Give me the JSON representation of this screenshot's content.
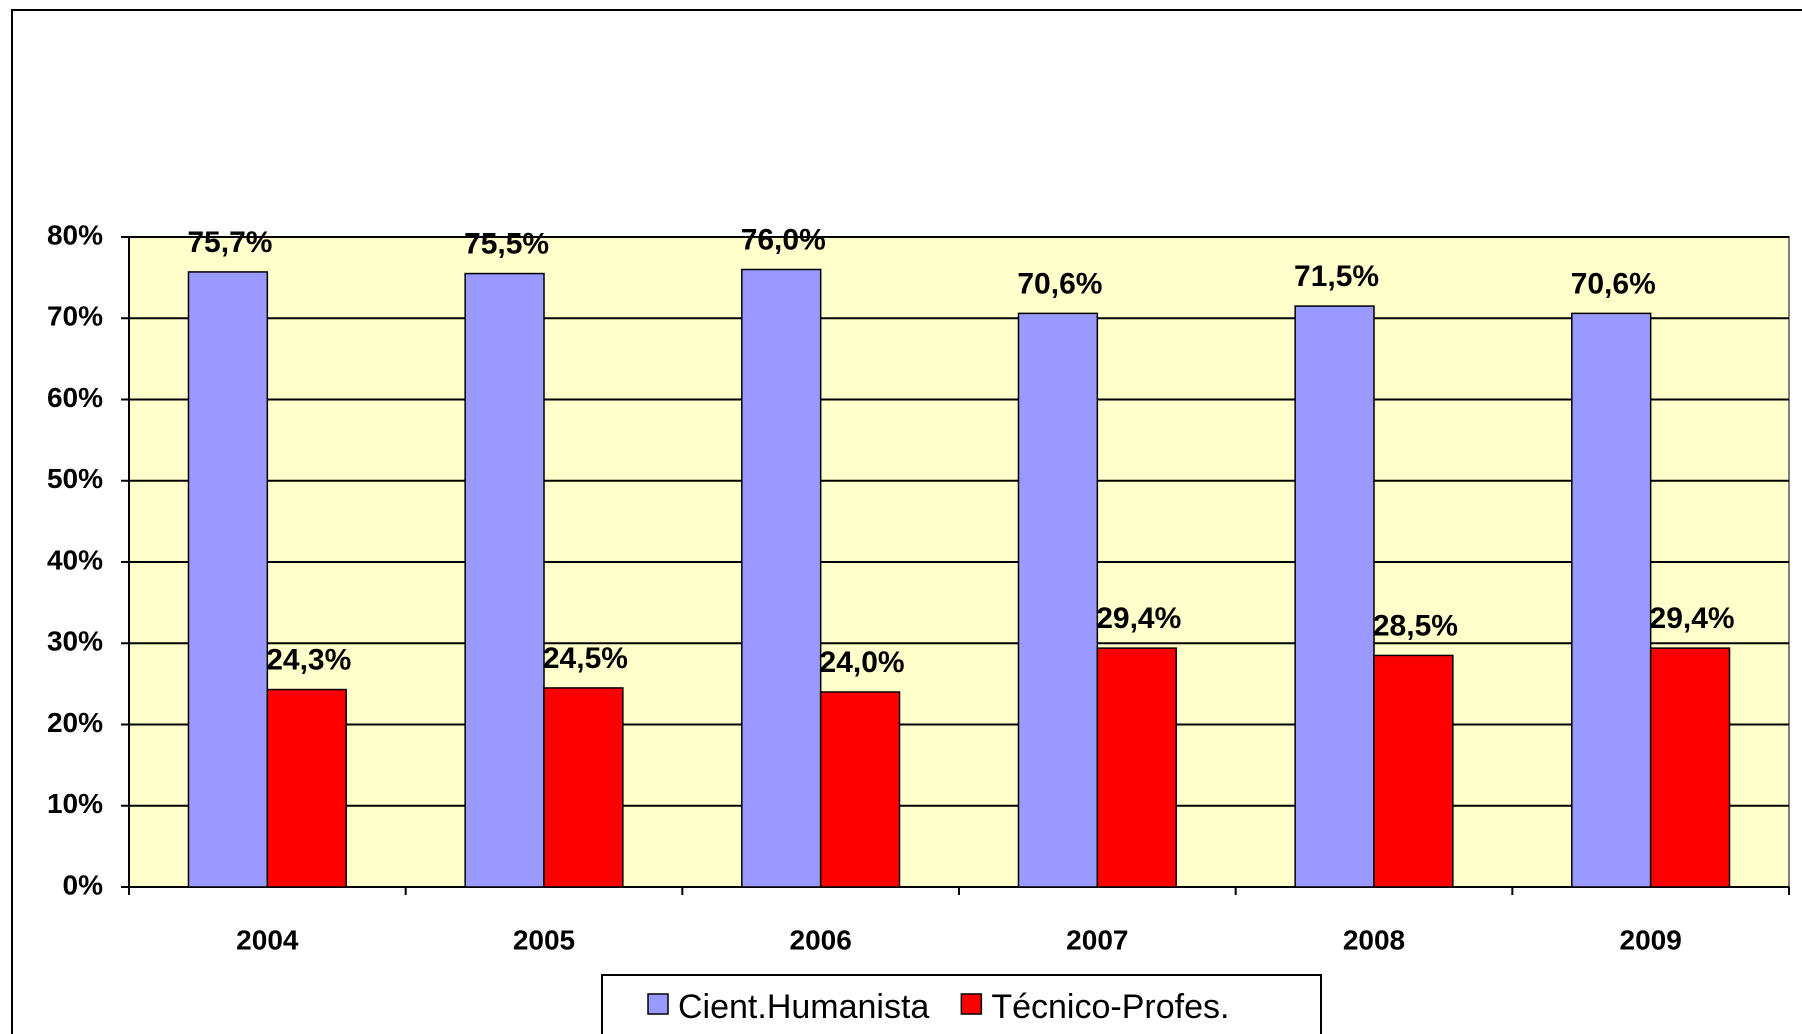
{
  "chart_data": {
    "type": "bar",
    "categories": [
      "2004",
      "2005",
      "2006",
      "2007",
      "2008",
      "2009"
    ],
    "series": [
      {
        "name": "Cient.Humanista",
        "color": "#9999ff",
        "values": [
          75.7,
          75.5,
          76.0,
          70.6,
          71.5,
          70.6
        ],
        "value_labels": [
          "75,7%",
          "75,5%",
          "76,0%",
          "70,6%",
          "71,5%",
          "70,6%"
        ]
      },
      {
        "name": "Técnico-Profes.",
        "color": "#ff0000",
        "values": [
          24.3,
          24.5,
          24.0,
          29.4,
          28.5,
          29.4
        ],
        "value_labels": [
          "24,3%",
          "24,5%",
          "24,0%",
          "29,4%",
          "28,5%",
          "29,4%"
        ]
      }
    ],
    "ylim": [
      0,
      80
    ],
    "yticks": [
      {
        "value": 0,
        "label": "0%"
      },
      {
        "value": 10,
        "label": "10%"
      },
      {
        "value": 20,
        "label": "20%"
      },
      {
        "value": 30,
        "label": "30%"
      },
      {
        "value": 40,
        "label": "40%"
      },
      {
        "value": 50,
        "label": "50%"
      },
      {
        "value": 60,
        "label": "60%"
      },
      {
        "value": 70,
        "label": "70%"
      },
      {
        "value": 80,
        "label": "80%"
      }
    ],
    "grid": true,
    "plot_background": "#ffffcc",
    "legend": "bottom"
  }
}
